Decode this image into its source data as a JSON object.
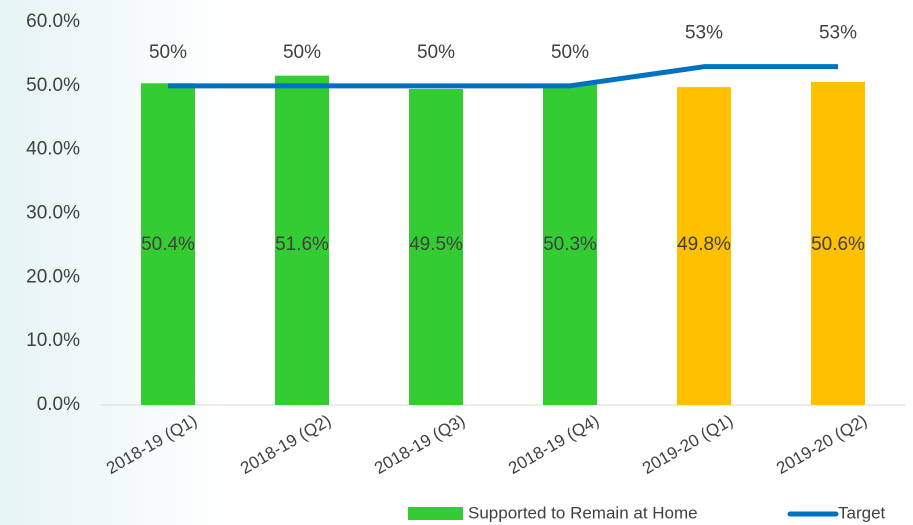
{
  "chart_data": {
    "type": "bar_line",
    "categories": [
      "2018-19 (Q1)",
      "2018-19 (Q2)",
      "2018-19 (Q3)",
      "2018-19 (Q4)",
      "2019-20 (Q1)",
      "2019-20 (Q2)"
    ],
    "series": [
      {
        "name": "Supported to Remain at Home",
        "type": "bar",
        "color": "#33cc33",
        "colors": [
          "#33cc33",
          "#33cc33",
          "#33cc33",
          "#33cc33",
          "#ffc000",
          "#ffc000"
        ],
        "values": [
          50.4,
          51.6,
          49.5,
          50.3,
          49.8,
          50.6
        ],
        "value_labels": [
          "50.4%",
          "51.6%",
          "49.5%",
          "50.3%",
          "49.8%",
          "50.6%"
        ]
      },
      {
        "name": "Target",
        "type": "line",
        "color": "#0070c0",
        "values": [
          50,
          50,
          50,
          50,
          53,
          53
        ],
        "value_labels": [
          "50%",
          "50%",
          "50%",
          "50%",
          "53%",
          "53%"
        ]
      }
    ],
    "ylim": [
      0,
      60
    ],
    "yticks": [
      {
        "value": 0,
        "label": "0.0%"
      },
      {
        "value": 10,
        "label": "10.0%"
      },
      {
        "value": 20,
        "label": "20.0%"
      },
      {
        "value": 30,
        "label": "30.0%"
      },
      {
        "value": 40,
        "label": "40.0%"
      },
      {
        "value": 50,
        "label": "50.0%"
      },
      {
        "value": 60,
        "label": "60.0%"
      }
    ]
  }
}
